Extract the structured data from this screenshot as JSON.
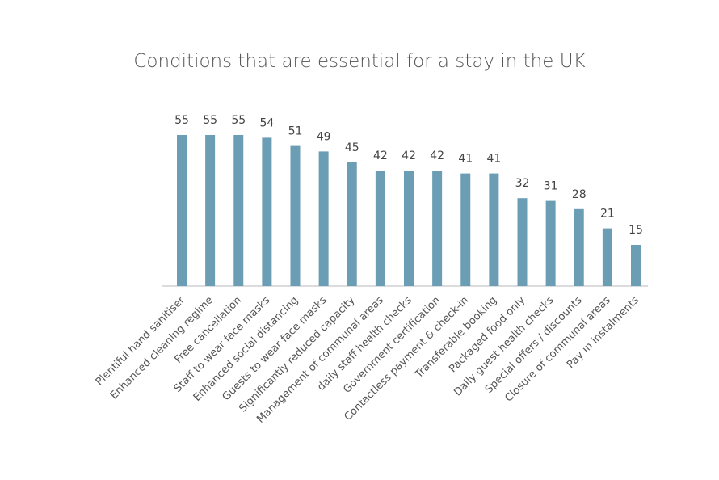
{
  "chart_data": {
    "type": "bar",
    "title": "Conditions that are essential for a stay in the UK",
    "categories": [
      "Plentiful hand sanitiser",
      "Enhanced cleaning regime",
      "Free cancellation",
      "Staff to wear face masks",
      "Enhanced social distancing",
      "Guests to wear face masks",
      "Significantly reduced capacity",
      "Management of communal areas",
      "daily staff health checks",
      "Government certification",
      "Contactless payment & check-in",
      "Transferable booking",
      "Packaged food only",
      "Daily guest health checks",
      "Special offers / discounts",
      "Closure of communal areas",
      "Pay in instalments"
    ],
    "values": [
      55,
      55,
      55,
      54,
      51,
      49,
      45,
      42,
      42,
      42,
      41,
      41,
      32,
      31,
      28,
      21,
      15
    ],
    "color": "#6b9db5"
  }
}
